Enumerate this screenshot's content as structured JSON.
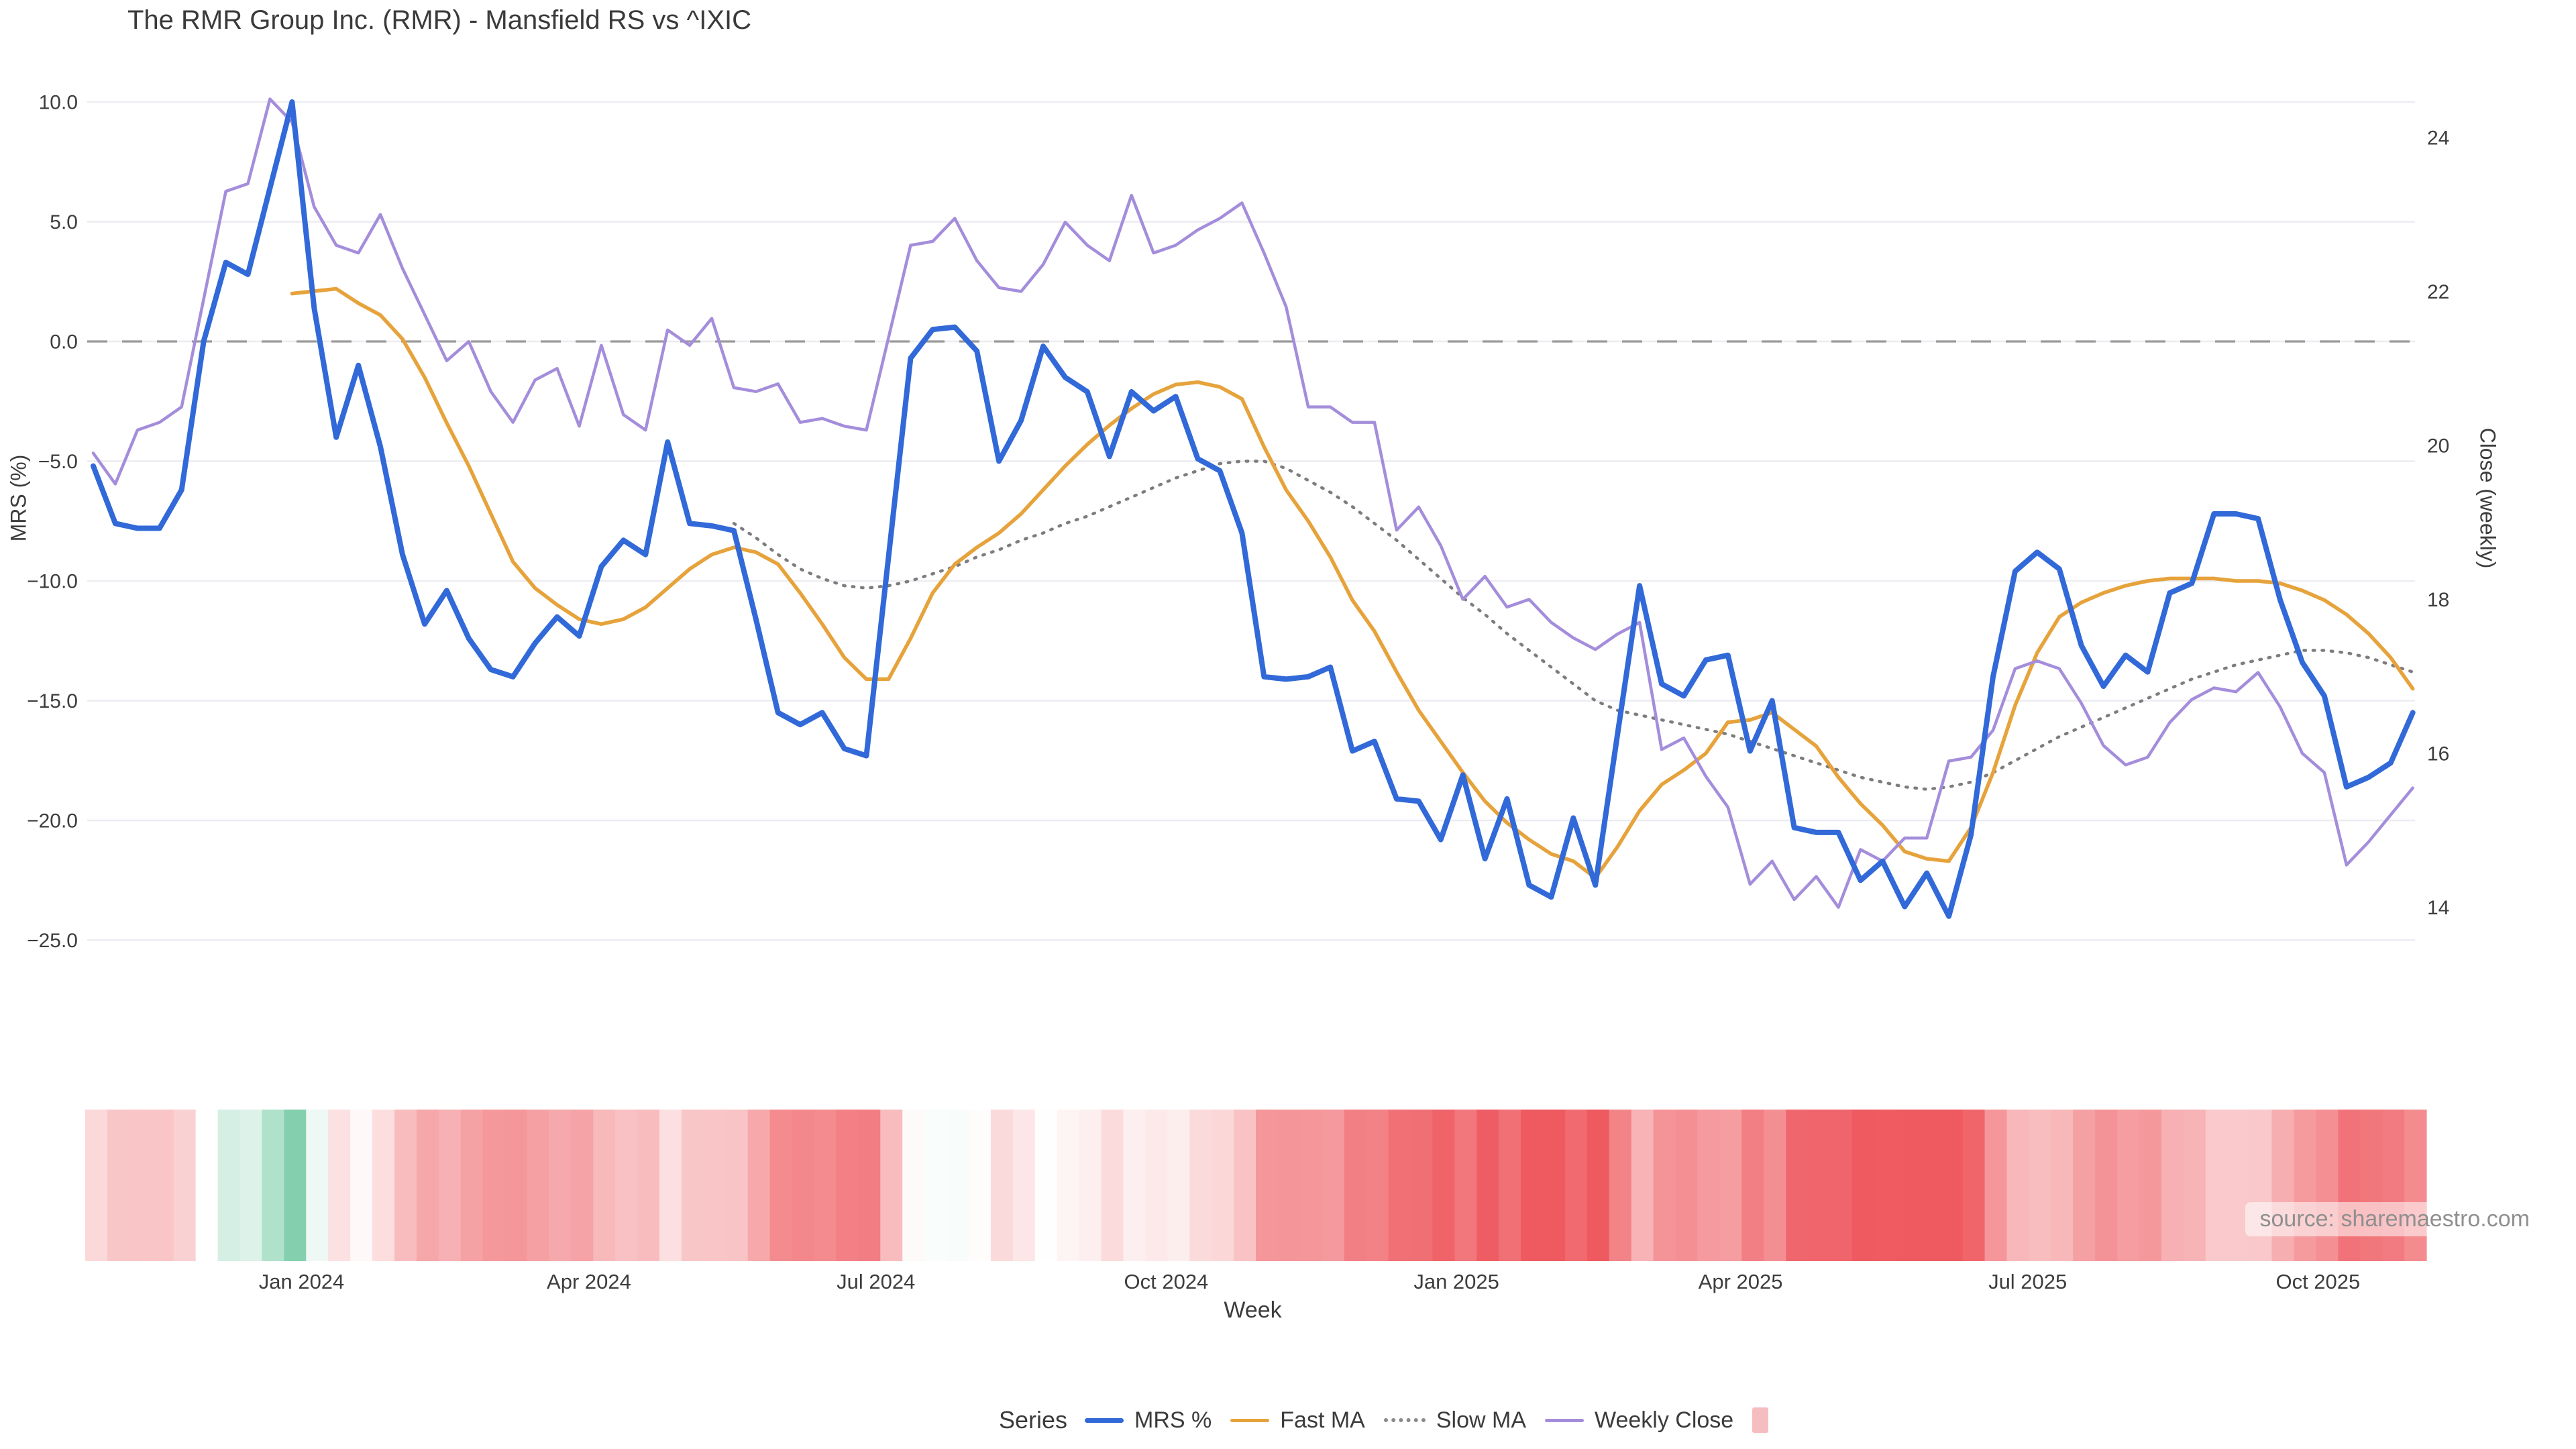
{
  "title": "The RMR Group Inc. (RMR) - Mansfield RS vs ^IXIC",
  "source": "source: sharemaestro.com",
  "legend": {
    "title": "Series",
    "items": [
      {
        "label": "MRS %",
        "type": "line",
        "color": "#3269d8"
      },
      {
        "label": "Fast MA",
        "type": "line",
        "color": "#e6a33c"
      },
      {
        "label": "Slow MA",
        "type": "dotted",
        "color": "#8a8a8a"
      },
      {
        "label": "Weekly Close",
        "type": "line",
        "color": "#a48ddb"
      },
      {
        "label": "",
        "type": "square",
        "color": "#f6bdc1"
      }
    ]
  },
  "chart_data": {
    "type": "line",
    "title": "The RMR Group Inc. (RMR) - Mansfield RS vs ^IXIC",
    "xlabel": "Week",
    "x_unit": "week_index",
    "n_points": 106,
    "grid": "horizontal-only",
    "legend_position": "bottom",
    "left_axis": {
      "label": "MRS (%)",
      "range": [
        -27.5,
        11.5
      ],
      "ticks": [
        {
          "v": 10,
          "label": "10.0"
        },
        {
          "v": 5,
          "label": "5.0"
        },
        {
          "v": 0,
          "label": "0.0"
        },
        {
          "v": -5,
          "label": "−5.0"
        },
        {
          "v": -10,
          "label": "−10.0"
        },
        {
          "v": -15,
          "label": "−15.0"
        },
        {
          "v": -20,
          "label": "−20.0"
        },
        {
          "v": -25,
          "label": "−25.0"
        }
      ]
    },
    "right_axis": {
      "label": "Close (weekly)",
      "range": [
        13.2,
        24.9
      ],
      "ticks": [
        {
          "v": 24,
          "label": "24"
        },
        {
          "v": 22,
          "label": "22"
        },
        {
          "v": 20,
          "label": "20"
        },
        {
          "v": 18,
          "label": "18"
        },
        {
          "v": 16,
          "label": "16"
        },
        {
          "v": 14,
          "label": "14"
        }
      ]
    },
    "x_ticks": [
      {
        "pos": 9.43,
        "label": "Jan 2024"
      },
      {
        "pos": 22.44,
        "label": "Apr 2024"
      },
      {
        "pos": 35.43,
        "label": "Jul 2024"
      },
      {
        "pos": 48.57,
        "label": "Oct 2024"
      },
      {
        "pos": 61.71,
        "label": "Jan 2025"
      },
      {
        "pos": 74.57,
        "label": "Apr 2025"
      },
      {
        "pos": 87.57,
        "label": "Jul 2025"
      },
      {
        "pos": 100.71,
        "label": "Oct 2025"
      }
    ],
    "zero_line": {
      "axis": "left",
      "value": 0,
      "style": "dashed",
      "color": "#9a9a9a"
    },
    "series": [
      {
        "name": "MRS %",
        "axis": "left",
        "color": "#3269d8",
        "width": 8,
        "style": "solid",
        "start": 0,
        "values": [
          -5.2,
          -7.6,
          -7.8,
          -7.8,
          -6.2,
          0.0,
          3.3,
          2.8,
          6.4,
          10.0,
          1.4,
          -4.0,
          -1.0,
          -4.4,
          -8.9,
          -11.8,
          -10.4,
          -12.4,
          -13.7,
          -14.0,
          -12.6,
          -11.5,
          -12.3,
          -9.4,
          -8.3,
          -8.9,
          -4.2,
          -7.6,
          -7.7,
          -7.9,
          -11.6,
          -15.5,
          -16.0,
          -15.5,
          -17.0,
          -17.3,
          -9.0,
          -0.7,
          0.5,
          0.6,
          -0.4,
          -5.0,
          -3.3,
          -0.2,
          -1.5,
          -2.1,
          -4.8,
          -2.1,
          -2.9,
          -2.3,
          -4.9,
          -5.4,
          -8.0,
          -14.0,
          -14.1,
          -14.0,
          -13.6,
          -17.1,
          -16.7,
          -19.1,
          -19.2,
          -20.8,
          -18.1,
          -21.6,
          -19.1,
          -22.7,
          -23.2,
          -19.9,
          -22.7,
          -16.4,
          -10.2,
          -14.3,
          -14.8,
          -13.3,
          -13.1,
          -17.1,
          -15.0,
          -20.3,
          -20.5,
          -20.5,
          -22.5,
          -21.7,
          -23.6,
          -22.2,
          -24.0,
          -20.6,
          -14.0,
          -9.6,
          -8.8,
          -9.5,
          -12.7,
          -14.4,
          -13.1,
          -13.8,
          -10.5,
          -10.1,
          -7.2,
          -7.2,
          -7.4,
          -10.8,
          -13.4,
          -14.8,
          -18.6,
          -18.2,
          -17.6,
          -15.5
        ]
      },
      {
        "name": "Fast MA",
        "axis": "left",
        "color": "#e6a33c",
        "width": 5.5,
        "style": "solid",
        "start": 9,
        "values": [
          2.0,
          2.1,
          2.2,
          1.6,
          1.1,
          0.1,
          -1.5,
          -3.4,
          -5.2,
          -7.2,
          -9.2,
          -10.3,
          -11.0,
          -11.6,
          -11.8,
          -11.6,
          -11.1,
          -10.3,
          -9.5,
          -8.9,
          -8.6,
          -8.8,
          -9.3,
          -10.5,
          -11.8,
          -13.2,
          -14.1,
          -14.1,
          -12.4,
          -10.5,
          -9.3,
          -8.6,
          -8.0,
          -7.2,
          -6.2,
          -5.2,
          -4.3,
          -3.5,
          -2.8,
          -2.2,
          -1.8,
          -1.7,
          -1.9,
          -2.4,
          -4.4,
          -6.2,
          -7.5,
          -9.0,
          -10.8,
          -12.1,
          -13.8,
          -15.4,
          -16.7,
          -18.0,
          -19.2,
          -20.1,
          -20.8,
          -21.4,
          -21.7,
          -22.4,
          -21.1,
          -19.6,
          -18.5,
          -17.9,
          -17.2,
          -15.9,
          -15.8,
          -15.5,
          -16.2,
          -16.9,
          -18.2,
          -19.3,
          -20.2,
          -21.3,
          -21.6,
          -21.7,
          -20.3,
          -18.0,
          -15.2,
          -13.0,
          -11.5,
          -10.9,
          -10.5,
          -10.2,
          -10.0,
          -9.9,
          -9.9,
          -9.9,
          -10.0,
          -10.0,
          -10.1,
          -10.4,
          -10.8,
          -11.4,
          -12.2,
          -13.2,
          -14.5
        ]
      },
      {
        "name": "Slow MA",
        "axis": "left",
        "color": "#7d7d7d",
        "width": 4.5,
        "style": "dotted",
        "start": 29,
        "values": [
          -7.6,
          -8.2,
          -8.9,
          -9.5,
          -9.9,
          -10.2,
          -10.3,
          -10.2,
          -10.0,
          -9.7,
          -9.4,
          -9.0,
          -8.7,
          -8.3,
          -8.0,
          -7.6,
          -7.3,
          -6.9,
          -6.5,
          -6.1,
          -5.7,
          -5.4,
          -5.1,
          -5.0,
          -5.0,
          -5.3,
          -5.8,
          -6.3,
          -6.9,
          -7.6,
          -8.3,
          -9.1,
          -9.9,
          -10.7,
          -11.4,
          -12.2,
          -12.9,
          -13.6,
          -14.3,
          -15.0,
          -15.4,
          -15.6,
          -15.8,
          -16.0,
          -16.2,
          -16.4,
          -16.7,
          -17.0,
          -17.3,
          -17.6,
          -17.9,
          -18.2,
          -18.4,
          -18.6,
          -18.7,
          -18.6,
          -18.4,
          -18.0,
          -17.5,
          -17.0,
          -16.5,
          -16.1,
          -15.7,
          -15.3,
          -14.9,
          -14.5,
          -14.1,
          -13.8,
          -13.5,
          -13.3,
          -13.1,
          -12.9,
          -12.9,
          -13.0,
          -13.2,
          -13.5,
          -13.8
        ]
      },
      {
        "name": "Weekly Close",
        "axis": "right",
        "color": "#a48ddb",
        "width": 4.5,
        "style": "solid",
        "start": 0,
        "values": [
          19.9,
          19.5,
          20.2,
          20.3,
          20.5,
          21.9,
          23.3,
          23.4,
          24.5,
          24.2,
          23.1,
          22.6,
          22.5,
          23.0,
          22.3,
          21.7,
          21.1,
          21.35,
          20.7,
          20.3,
          20.85,
          21.0,
          20.25,
          21.3,
          20.4,
          20.2,
          21.5,
          21.3,
          21.65,
          20.75,
          20.7,
          20.8,
          20.3,
          20.35,
          20.25,
          20.2,
          21.4,
          22.6,
          22.65,
          22.95,
          22.4,
          22.05,
          22.0,
          22.35,
          22.9,
          22.6,
          22.4,
          23.25,
          22.5,
          22.6,
          22.8,
          22.95,
          23.15,
          22.5,
          21.8,
          20.5,
          20.5,
          20.3,
          20.3,
          18.9,
          19.2,
          18.7,
          18.0,
          18.3,
          17.9,
          18.0,
          17.7,
          17.5,
          17.35,
          17.55,
          17.7,
          16.05,
          16.2,
          15.7,
          15.3,
          14.3,
          14.6,
          14.1,
          14.4,
          14.0,
          14.75,
          14.6,
          14.9,
          14.9,
          15.9,
          15.95,
          16.3,
          17.1,
          17.2,
          17.1,
          16.65,
          16.1,
          15.85,
          15.95,
          16.4,
          16.7,
          16.85,
          16.8,
          17.05,
          16.6,
          16.0,
          15.75,
          14.55,
          14.85,
          15.2,
          15.55
        ]
      }
    ],
    "heatmap": {
      "based_on": "MRS %",
      "description": "one vertical band per week, red for negative MRS, green for positive",
      "negative_color": "#ee5a60",
      "negative_saturation_at": 22,
      "positive_color": "#84d0ae",
      "positive_saturation_at": 10,
      "zero_color": "#ffffff"
    },
    "colors": {
      "background": "#ffffff",
      "gridline": "#ececf2",
      "tick_text": "#3d3d3d",
      "title_text": "#3a3a3a"
    }
  }
}
